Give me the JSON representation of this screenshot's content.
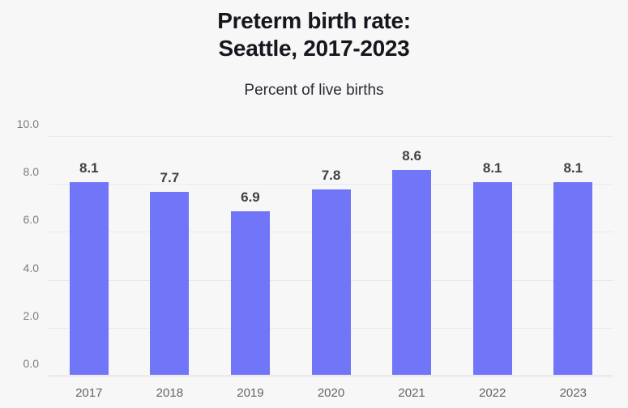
{
  "header": {
    "title": "Preterm birth rate:\nSeattle, 2017-2023",
    "subtitle": "Percent of live births"
  },
  "colors": {
    "background": "#f7f7f8",
    "bar": "#7175f7",
    "title": "#17161d",
    "subtitle": "#2b2b33",
    "axis_label": "#7c7c80",
    "xaxis_label": "#636367",
    "value_label": "#414144",
    "gridline": "#e9e9ec",
    "baseline": "#eceaef"
  },
  "chart_data": {
    "type": "bar",
    "title": "Preterm birth rate: Seattle, 2017-2023",
    "subtitle": "Percent of live births",
    "categories": [
      "2017",
      "2018",
      "2019",
      "2020",
      "2021",
      "2022",
      "2023"
    ],
    "values": [
      8.1,
      7.7,
      6.9,
      7.8,
      8.6,
      8.1,
      8.1
    ],
    "value_labels": [
      "8.1",
      "7.7",
      "6.9",
      "7.8",
      "8.6",
      "8.1",
      "8.1"
    ],
    "xlabel": "",
    "ylabel": "Percent of live births",
    "ylim": [
      0,
      10
    ],
    "yticks": [
      0,
      2,
      4,
      6,
      8,
      10
    ],
    "ytick_labels": [
      "0.0",
      "2.0",
      "4.0",
      "6.0",
      "8.0",
      "10.0"
    ],
    "grid": true,
    "legend": false
  }
}
